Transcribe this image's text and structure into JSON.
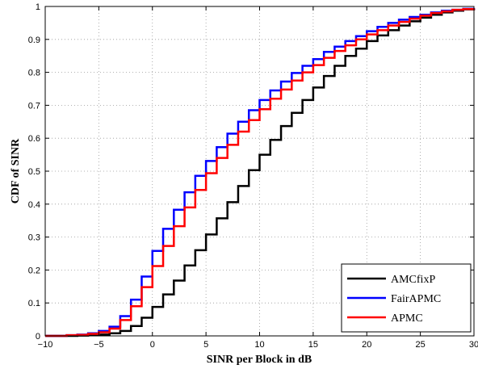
{
  "chart_data": {
    "type": "line",
    "step": true,
    "title": "",
    "xlabel": "SINR per Block in dB",
    "ylabel": "CDF of SINR",
    "xlim": [
      -10,
      30
    ],
    "ylim": [
      0,
      1
    ],
    "xticks": [
      "−10",
      "−5",
      "0",
      "5",
      "10",
      "15",
      "20",
      "25",
      "30"
    ],
    "xtick_values": [
      -10,
      -5,
      0,
      5,
      10,
      15,
      20,
      25,
      30
    ],
    "yticks": [
      "0",
      "0.1",
      "0.2",
      "0.3",
      "0.4",
      "0.5",
      "0.6",
      "0.7",
      "0.8",
      "0.9",
      "1"
    ],
    "ytick_values": [
      0,
      0.1,
      0.2,
      0.3,
      0.4,
      0.5,
      0.6,
      0.7,
      0.8,
      0.9,
      1
    ],
    "grid": true,
    "legend_position": "bottom-right",
    "series": [
      {
        "name": "AMCfixP",
        "color": "#000000",
        "x": [
          -10,
          -7,
          -6,
          -5,
          -4,
          -3,
          -2,
          -1,
          0,
          1,
          2,
          3,
          4,
          5,
          6,
          7,
          8,
          9,
          10,
          11,
          12,
          13,
          14,
          15,
          16,
          17,
          18,
          19,
          20,
          21,
          22,
          23,
          24,
          25,
          26,
          27,
          28,
          29,
          30
        ],
        "y": [
          0,
          0.001,
          0.002,
          0.004,
          0.008,
          0.015,
          0.03,
          0.055,
          0.088,
          0.126,
          0.168,
          0.214,
          0.26,
          0.308,
          0.357,
          0.406,
          0.455,
          0.503,
          0.55,
          0.595,
          0.637,
          0.677,
          0.716,
          0.754,
          0.789,
          0.82,
          0.85,
          0.872,
          0.895,
          0.912,
          0.928,
          0.942,
          0.955,
          0.966,
          0.975,
          0.982,
          0.987,
          0.991,
          0.993
        ]
      },
      {
        "name": "FairAPMC",
        "color": "#0000ff",
        "x": [
          -10,
          -8,
          -7,
          -6,
          -5,
          -4,
          -3,
          -2,
          -1,
          0,
          1,
          2,
          3,
          4,
          5,
          6,
          7,
          8,
          9,
          10,
          11,
          12,
          13,
          14,
          15,
          16,
          17,
          18,
          19,
          20,
          21,
          22,
          23,
          24,
          25,
          26,
          27,
          28,
          29,
          30
        ],
        "y": [
          0,
          0.002,
          0.004,
          0.008,
          0.015,
          0.028,
          0.06,
          0.11,
          0.18,
          0.258,
          0.325,
          0.383,
          0.436,
          0.486,
          0.531,
          0.573,
          0.614,
          0.65,
          0.685,
          0.716,
          0.745,
          0.772,
          0.798,
          0.82,
          0.84,
          0.862,
          0.878,
          0.895,
          0.91,
          0.925,
          0.938,
          0.95,
          0.96,
          0.968,
          0.975,
          0.982,
          0.987,
          0.99,
          0.993,
          0.995
        ]
      },
      {
        "name": "APMC",
        "color": "#ff0000",
        "x": [
          -10,
          -8,
          -7,
          -6,
          -5,
          -4,
          -3,
          -2,
          -1,
          0,
          1,
          2,
          3,
          4,
          5,
          6,
          7,
          8,
          9,
          10,
          11,
          12,
          13,
          14,
          15,
          16,
          17,
          18,
          19,
          20,
          21,
          22,
          23,
          24,
          25,
          26,
          27,
          28,
          29,
          30
        ],
        "y": [
          0,
          0.002,
          0.003,
          0.006,
          0.011,
          0.022,
          0.048,
          0.09,
          0.148,
          0.212,
          0.273,
          0.333,
          0.39,
          0.443,
          0.494,
          0.54,
          0.58,
          0.62,
          0.655,
          0.688,
          0.72,
          0.748,
          0.775,
          0.8,
          0.822,
          0.844,
          0.865,
          0.882,
          0.9,
          0.915,
          0.928,
          0.942,
          0.953,
          0.963,
          0.972,
          0.98,
          0.985,
          0.99,
          0.992,
          0.994
        ]
      }
    ]
  }
}
